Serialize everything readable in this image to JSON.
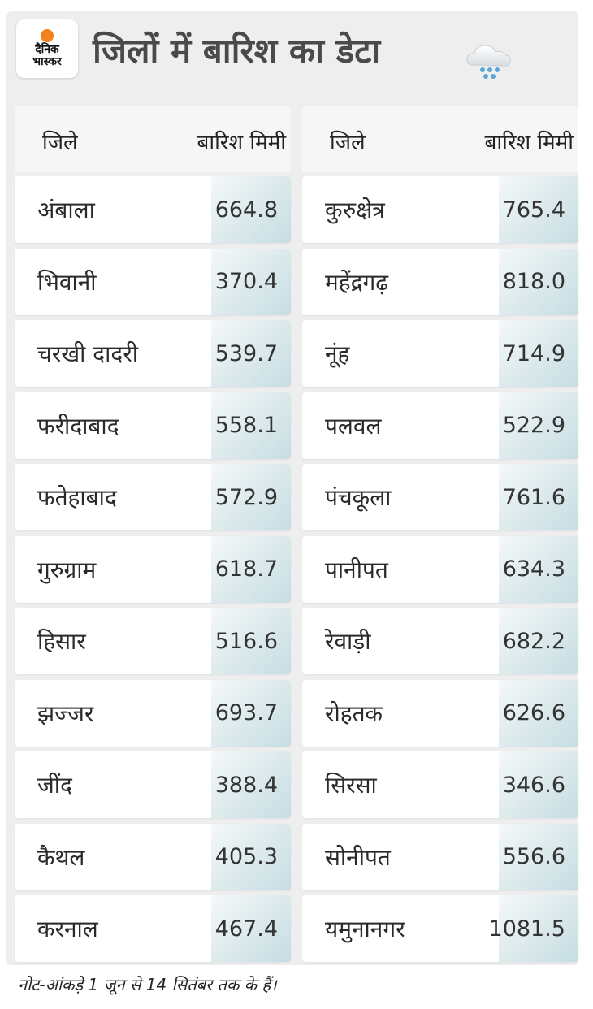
{
  "logo": {
    "line1": "दैनिक",
    "line2": "भास्कर"
  },
  "title": "जिलों में बारिश का डेटा",
  "icon": "rain-cloud-icon",
  "headers": {
    "district": "जिले",
    "rain": "बारिश मिमी"
  },
  "left": [
    {
      "name": "अंबाला",
      "value": "664.8"
    },
    {
      "name": "भिवानी",
      "value": "370.4"
    },
    {
      "name": "चरखी दादरी",
      "value": "539.7"
    },
    {
      "name": "फरीदाबाद",
      "value": "558.1"
    },
    {
      "name": "फतेहाबाद",
      "value": "572.9"
    },
    {
      "name": "गुरुग्राम",
      "value": "618.7"
    },
    {
      "name": "हिसार",
      "value": "516.6"
    },
    {
      "name": "झज्जर",
      "value": "693.7"
    },
    {
      "name": "जींद",
      "value": "388.4"
    },
    {
      "name": "कैथल",
      "value": "405.3"
    },
    {
      "name": "करनाल",
      "value": "467.4"
    }
  ],
  "right": [
    {
      "name": "कुरुक्षेत्र",
      "value": "765.4"
    },
    {
      "name": "महेंद्रगढ़",
      "value": "818.0"
    },
    {
      "name": "नूंह",
      "value": "714.9"
    },
    {
      "name": "पलवल",
      "value": "522.9"
    },
    {
      "name": "पंचकूला",
      "value": "761.6"
    },
    {
      "name": "पानीपत",
      "value": "634.3"
    },
    {
      "name": "रेवाड़ी",
      "value": "682.2"
    },
    {
      "name": "रोहतक",
      "value": "626.6"
    },
    {
      "name": "सिरसा",
      "value": "346.6"
    },
    {
      "name": "सोनीपत",
      "value": "556.6"
    },
    {
      "name": "यमुनानगर",
      "value": "1081.5"
    }
  ],
  "note": "नोट-आंकड़े 1 जून से 14 सितंबर तक के हैं।"
}
